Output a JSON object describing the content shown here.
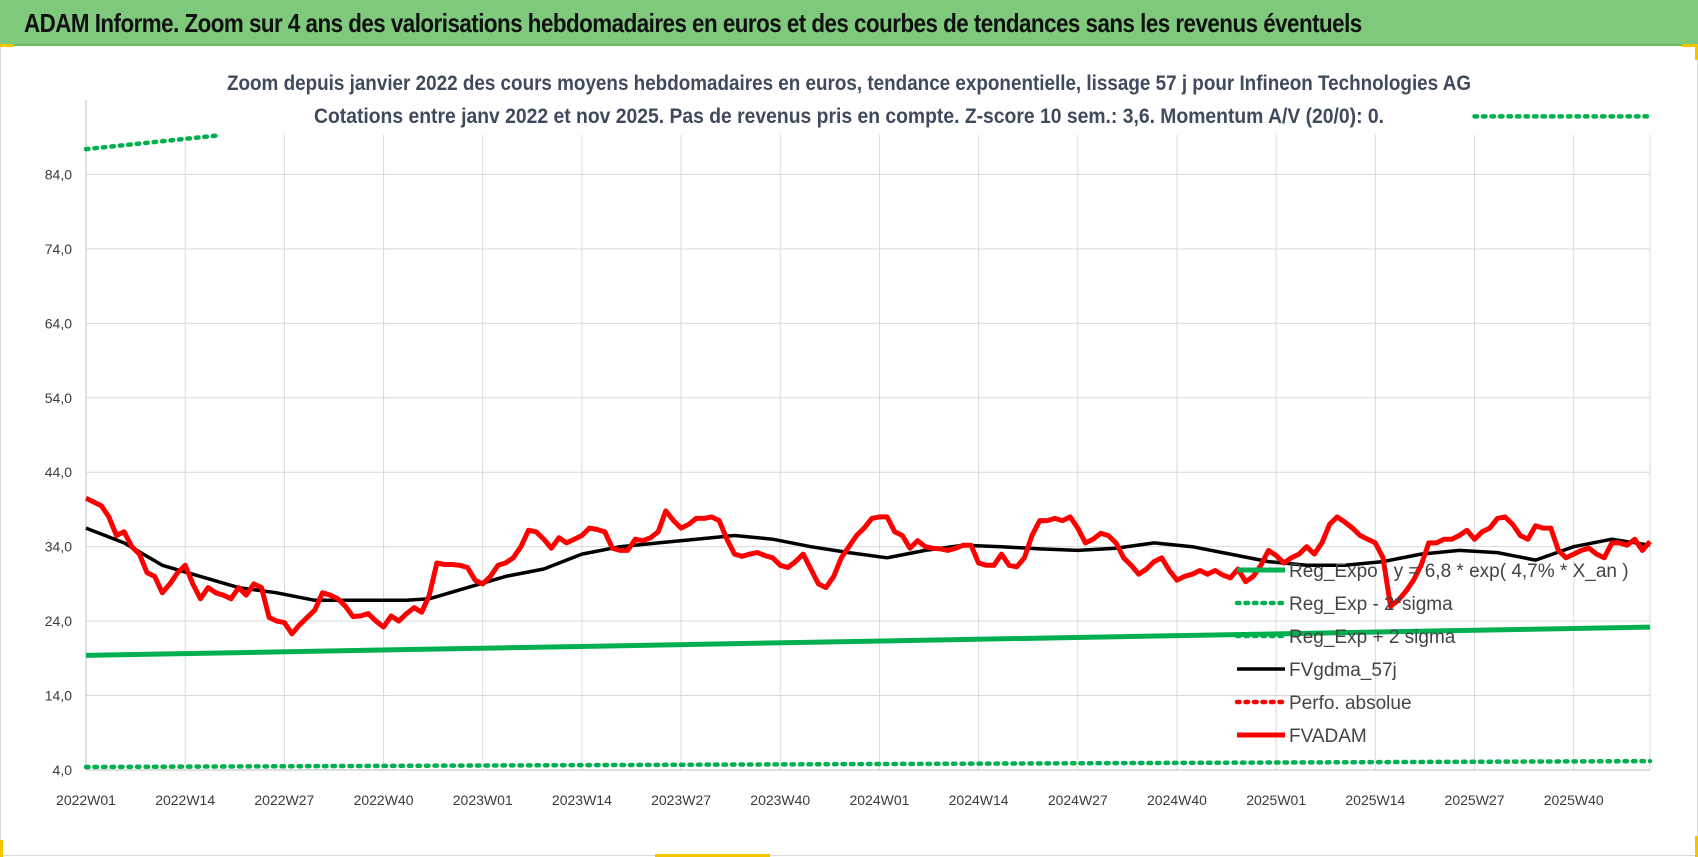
{
  "banner": {
    "title": "ADAM Informe. Zoom sur 4 ans des valorisations hebdomadaires en euros et des courbes de tendances sans les revenus éventuels"
  },
  "chart_data": {
    "type": "line",
    "title": "Zoom depuis janvier 2022 des cours moyens hebdomadaires en euros, tendance exponentielle, lissage 57 j pour Infineon Technologies AG",
    "subtitle": "Cotations entre janv 2022 et nov 2025. Pas de revenus pris en compte. Z-score 10 sem.: 3,6. Momentum A/V (20/0): 0.",
    "xlabel": "",
    "ylabel": "",
    "ylim": [
      4,
      94
    ],
    "yticks": [
      "4,0",
      "14,0",
      "24,0",
      "34,0",
      "44,0",
      "54,0",
      "64,0",
      "74,0",
      "84,0"
    ],
    "x_tick_labels": [
      "2022W01",
      "2022W14",
      "2022W27",
      "2022W40",
      "2023W01",
      "2023W14",
      "2023W27",
      "2023W40",
      "2024W01",
      "2024W14",
      "2024W27",
      "2024W40",
      "2025W01",
      "2025W14",
      "2025W27",
      "2025W40"
    ],
    "week_count": 206,
    "grid": true,
    "legend_position": "bottom-right",
    "series": [
      {
        "name": "Reg_Expo : y = 6,8 * exp( 4,7% *  X_an )",
        "color": "#00b050",
        "style": "solid",
        "points": [
          [
            0,
            19.4
          ],
          [
            205,
            23.2
          ]
        ]
      },
      {
        "name": "Reg_Exp - 2*sigma",
        "color": "#00b050",
        "style": "dotted",
        "points": [
          [
            0,
            4.4
          ],
          [
            205,
            5.2
          ]
        ]
      },
      {
        "name": "Reg_Exp + 2 sigma",
        "color": "#00b050",
        "style": "dotted",
        "segments": [
          [
            [
              0,
              87.4
            ],
            [
              17,
              89.2
            ]
          ],
          [
            [
              182,
              91.8
            ],
            [
              205,
              91.8
            ]
          ]
        ]
      },
      {
        "name": "FVgdma_57j",
        "color": "#000000",
        "style": "solid",
        "points": [
          [
            0,
            36.5
          ],
          [
            5,
            34.5
          ],
          [
            10,
            31.5
          ],
          [
            15,
            30.0
          ],
          [
            20,
            28.5
          ],
          [
            25,
            27.8
          ],
          [
            30,
            26.8
          ],
          [
            36,
            26.8
          ],
          [
            42,
            26.8
          ],
          [
            45,
            27.0
          ],
          [
            50,
            28.5
          ],
          [
            55,
            30.0
          ],
          [
            60,
            31.0
          ],
          [
            65,
            33.0
          ],
          [
            70,
            34.0
          ],
          [
            75,
            34.5
          ],
          [
            80,
            35.0
          ],
          [
            85,
            35.5
          ],
          [
            90,
            35.0
          ],
          [
            95,
            34.0
          ],
          [
            100,
            33.2
          ],
          [
            105,
            32.5
          ],
          [
            110,
            33.5
          ],
          [
            115,
            34.2
          ],
          [
            120,
            34.0
          ],
          [
            125,
            33.7
          ],
          [
            130,
            33.5
          ],
          [
            135,
            33.8
          ],
          [
            140,
            34.5
          ],
          [
            145,
            34.0
          ],
          [
            150,
            33.0
          ],
          [
            155,
            32.0
          ],
          [
            160,
            31.5
          ],
          [
            165,
            31.5
          ],
          [
            170,
            32.0
          ],
          [
            175,
            33.0
          ],
          [
            180,
            33.5
          ],
          [
            185,
            33.2
          ],
          [
            190,
            32.2
          ],
          [
            195,
            34.0
          ],
          [
            200,
            35.0
          ],
          [
            205,
            34.2
          ]
        ]
      },
      {
        "name": "Perfo. absolue",
        "color": "#ff0000",
        "style": "dotted",
        "points": []
      },
      {
        "name": "FVADAM",
        "color": "#ff0000",
        "style": "solid",
        "points": [
          [
            0,
            40.5
          ],
          [
            2,
            39.5
          ],
          [
            3,
            38.0
          ],
          [
            4,
            35.5
          ],
          [
            5,
            36.0
          ],
          [
            6,
            34.0
          ],
          [
            7,
            33.0
          ],
          [
            8,
            30.5
          ],
          [
            9,
            30.0
          ],
          [
            10,
            27.8
          ],
          [
            11,
            29.0
          ],
          [
            12,
            30.5
          ],
          [
            13,
            31.5
          ],
          [
            14,
            29.0
          ],
          [
            15,
            27.0
          ],
          [
            16,
            28.5
          ],
          [
            17,
            27.8
          ],
          [
            18,
            27.5
          ],
          [
            19,
            27.0
          ],
          [
            20,
            28.5
          ],
          [
            21,
            27.5
          ],
          [
            22,
            29.0
          ],
          [
            23,
            28.5
          ],
          [
            24,
            24.5
          ],
          [
            25,
            24.0
          ],
          [
            26,
            23.8
          ],
          [
            27,
            22.3
          ],
          [
            28,
            23.5
          ],
          [
            29,
            24.5
          ],
          [
            30,
            25.5
          ],
          [
            31,
            27.8
          ],
          [
            32,
            27.5
          ],
          [
            33,
            27.0
          ],
          [
            34,
            26.0
          ],
          [
            35,
            24.6
          ],
          [
            36,
            24.7
          ],
          [
            37,
            25.0
          ],
          [
            38,
            24.0
          ],
          [
            39,
            23.2
          ],
          [
            40,
            24.7
          ],
          [
            41,
            24.0
          ],
          [
            42,
            25.0
          ],
          [
            43,
            25.8
          ],
          [
            44,
            25.2
          ],
          [
            45,
            27.5
          ],
          [
            46,
            31.8
          ],
          [
            47,
            31.6
          ],
          [
            48,
            31.6
          ],
          [
            49,
            31.5
          ],
          [
            50,
            31.2
          ],
          [
            51,
            29.5
          ],
          [
            52,
            29.0
          ],
          [
            53,
            30.0
          ],
          [
            54,
            31.5
          ],
          [
            55,
            31.8
          ],
          [
            56,
            32.5
          ],
          [
            57,
            34.0
          ],
          [
            58,
            36.2
          ],
          [
            59,
            36.0
          ],
          [
            60,
            35.0
          ],
          [
            61,
            33.8
          ],
          [
            62,
            35.2
          ],
          [
            63,
            34.5
          ],
          [
            64,
            35.0
          ],
          [
            65,
            35.5
          ],
          [
            66,
            36.5
          ],
          [
            67,
            36.3
          ],
          [
            68,
            36.0
          ],
          [
            69,
            33.8
          ],
          [
            70,
            33.5
          ],
          [
            71,
            33.5
          ],
          [
            72,
            35.0
          ],
          [
            73,
            34.8
          ],
          [
            74,
            35.2
          ],
          [
            75,
            36.0
          ],
          [
            76,
            38.8
          ],
          [
            77,
            37.5
          ],
          [
            78,
            36.5
          ],
          [
            79,
            37.0
          ],
          [
            80,
            37.8
          ],
          [
            81,
            37.8
          ],
          [
            82,
            38.0
          ],
          [
            83,
            37.5
          ],
          [
            84,
            35.0
          ],
          [
            85,
            33.0
          ],
          [
            86,
            32.7
          ],
          [
            87,
            33.0
          ],
          [
            88,
            33.2
          ],
          [
            89,
            32.8
          ],
          [
            90,
            32.5
          ],
          [
            91,
            31.5
          ],
          [
            92,
            31.2
          ],
          [
            93,
            32.0
          ],
          [
            94,
            33.0
          ],
          [
            95,
            31.0
          ],
          [
            96,
            29.0
          ],
          [
            97,
            28.5
          ],
          [
            98,
            30.0
          ],
          [
            99,
            32.5
          ],
          [
            100,
            34.0
          ],
          [
            101,
            35.5
          ],
          [
            102,
            36.5
          ],
          [
            103,
            37.8
          ],
          [
            104,
            38.0
          ],
          [
            105,
            38.0
          ],
          [
            106,
            36.0
          ],
          [
            107,
            35.5
          ],
          [
            108,
            33.8
          ],
          [
            109,
            34.8
          ],
          [
            110,
            34.0
          ],
          [
            111,
            33.8
          ],
          [
            112,
            33.7
          ],
          [
            113,
            33.5
          ],
          [
            114,
            33.8
          ],
          [
            115,
            34.2
          ],
          [
            116,
            34.2
          ],
          [
            117,
            31.8
          ],
          [
            118,
            31.5
          ],
          [
            119,
            31.5
          ],
          [
            120,
            33.0
          ],
          [
            121,
            31.5
          ],
          [
            122,
            31.3
          ],
          [
            123,
            32.5
          ],
          [
            124,
            35.5
          ],
          [
            125,
            37.5
          ],
          [
            126,
            37.5
          ],
          [
            127,
            37.8
          ],
          [
            128,
            37.5
          ],
          [
            129,
            38.0
          ],
          [
            130,
            36.5
          ],
          [
            131,
            34.5
          ],
          [
            132,
            35.0
          ],
          [
            133,
            35.8
          ],
          [
            134,
            35.5
          ],
          [
            135,
            34.5
          ],
          [
            136,
            32.5
          ],
          [
            137,
            31.5
          ],
          [
            138,
            30.3
          ],
          [
            139,
            31.0
          ],
          [
            140,
            32.0
          ],
          [
            141,
            32.5
          ],
          [
            142,
            30.8
          ],
          [
            143,
            29.5
          ],
          [
            144,
            30.0
          ],
          [
            145,
            30.3
          ],
          [
            146,
            30.8
          ],
          [
            147,
            30.3
          ],
          [
            148,
            30.8
          ],
          [
            149,
            30.2
          ],
          [
            150,
            29.8
          ],
          [
            151,
            31.0
          ],
          [
            152,
            29.3
          ],
          [
            153,
            30.0
          ],
          [
            154,
            31.5
          ],
          [
            155,
            33.5
          ],
          [
            156,
            32.8
          ],
          [
            157,
            31.8
          ],
          [
            158,
            32.5
          ],
          [
            159,
            33.0
          ],
          [
            160,
            34.0
          ],
          [
            161,
            33.0
          ],
          [
            162,
            34.5
          ],
          [
            163,
            37.0
          ],
          [
            164,
            38.0
          ],
          [
            165,
            37.3
          ],
          [
            166,
            36.5
          ],
          [
            167,
            35.5
          ],
          [
            168,
            35.0
          ],
          [
            169,
            34.5
          ],
          [
            170,
            32.5
          ],
          [
            171,
            26.0
          ],
          [
            172,
            26.8
          ],
          [
            173,
            28.0
          ],
          [
            174,
            29.5
          ],
          [
            175,
            31.5
          ],
          [
            176,
            34.5
          ],
          [
            177,
            34.5
          ],
          [
            178,
            35.0
          ],
          [
            179,
            35.0
          ],
          [
            180,
            35.5
          ],
          [
            181,
            36.2
          ],
          [
            182,
            35.0
          ],
          [
            183,
            36.0
          ],
          [
            184,
            36.5
          ],
          [
            185,
            37.8
          ],
          [
            186,
            38.0
          ],
          [
            187,
            37.0
          ],
          [
            188,
            35.5
          ],
          [
            189,
            35.0
          ],
          [
            190,
            36.8
          ],
          [
            191,
            36.5
          ],
          [
            192,
            36.5
          ],
          [
            193,
            33.5
          ],
          [
            194,
            32.5
          ],
          [
            195,
            33.0
          ],
          [
            196,
            33.5
          ],
          [
            197,
            33.8
          ],
          [
            198,
            33.0
          ],
          [
            199,
            32.5
          ],
          [
            200,
            34.5
          ],
          [
            201,
            34.5
          ],
          [
            202,
            34.2
          ],
          [
            203,
            35.0
          ],
          [
            204,
            33.5
          ],
          [
            205,
            34.7
          ]
        ]
      }
    ]
  }
}
